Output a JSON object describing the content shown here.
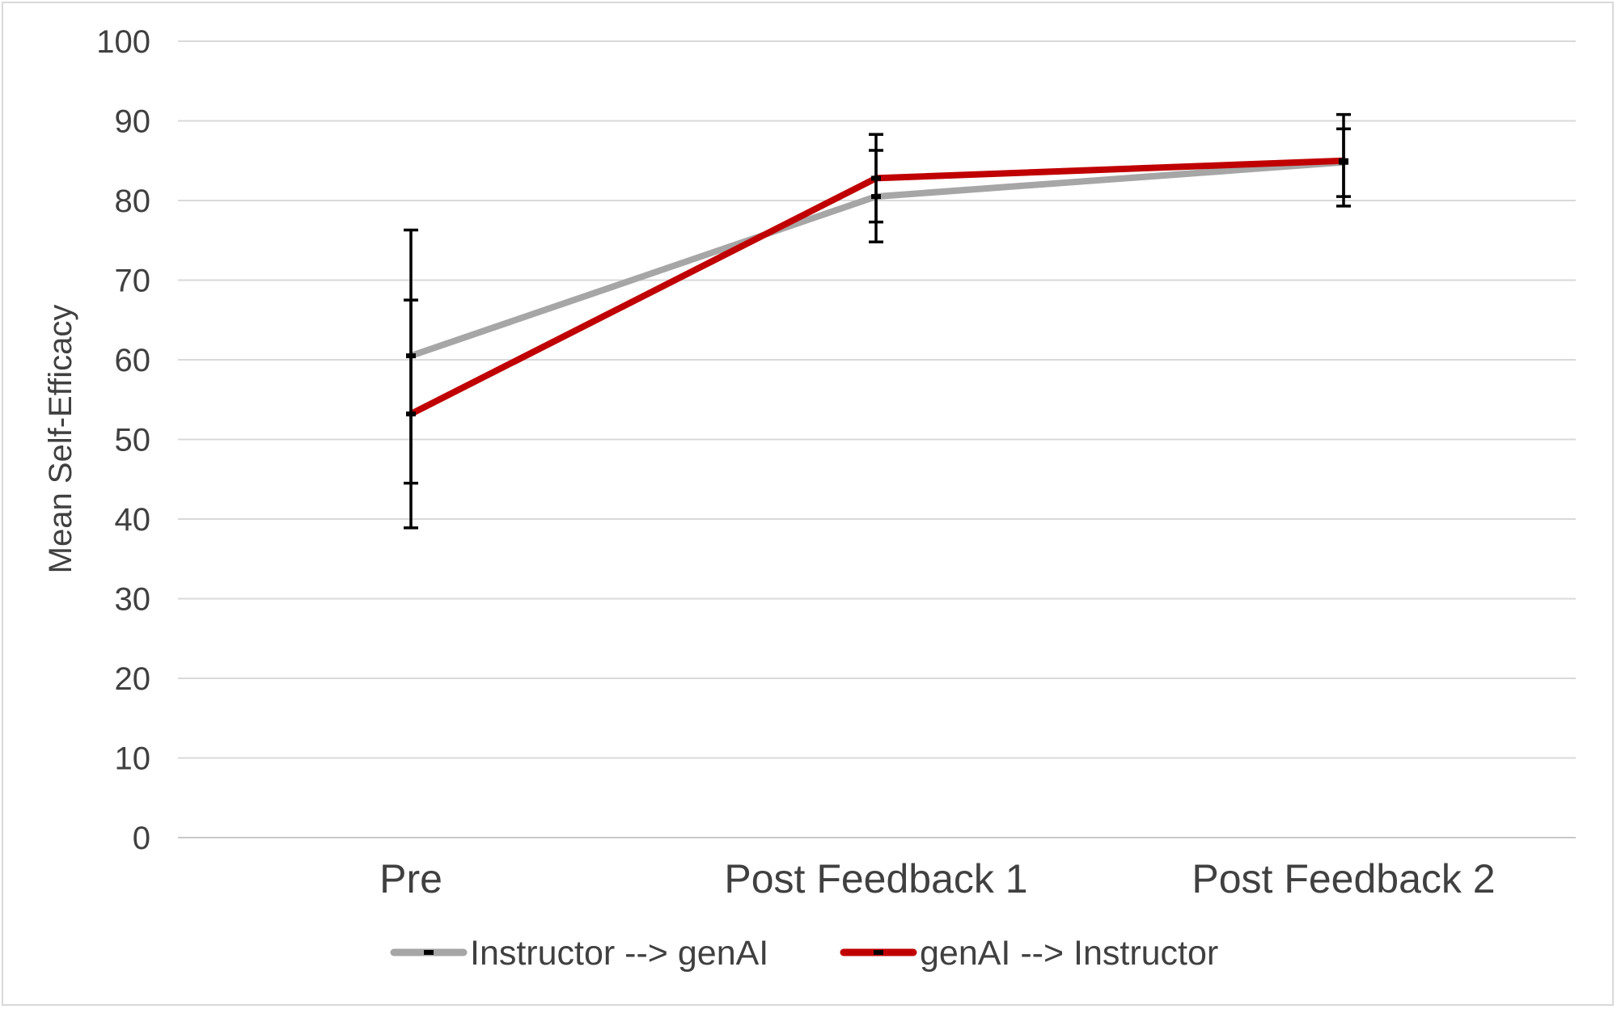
{
  "chart_data": {
    "type": "line",
    "title": "",
    "xlabel": "",
    "ylabel": "Mean Self-Efficacy",
    "ylim": [
      0,
      100
    ],
    "y_ticks": [
      0,
      10,
      20,
      30,
      40,
      50,
      60,
      70,
      80,
      90,
      100
    ],
    "categories": [
      "Pre",
      "Post Feedback 1",
      "Post Feedback 2"
    ],
    "grid": true,
    "legend_position": "bottom",
    "series": [
      {
        "name": "Instructor --> genAI",
        "color": "#a6a6a6",
        "values": [
          60.5,
          80.5,
          84.8
        ],
        "error_low": [
          44.5,
          74.8,
          80.5
        ],
        "error_high": [
          76.3,
          86.3,
          89.0
        ]
      },
      {
        "name": "genAI --> Instructor",
        "color": "#c00000",
        "values": [
          53.2,
          82.8,
          85.0
        ],
        "error_low": [
          38.9,
          77.3,
          79.3
        ],
        "error_high": [
          67.5,
          88.3,
          90.8
        ]
      }
    ]
  }
}
